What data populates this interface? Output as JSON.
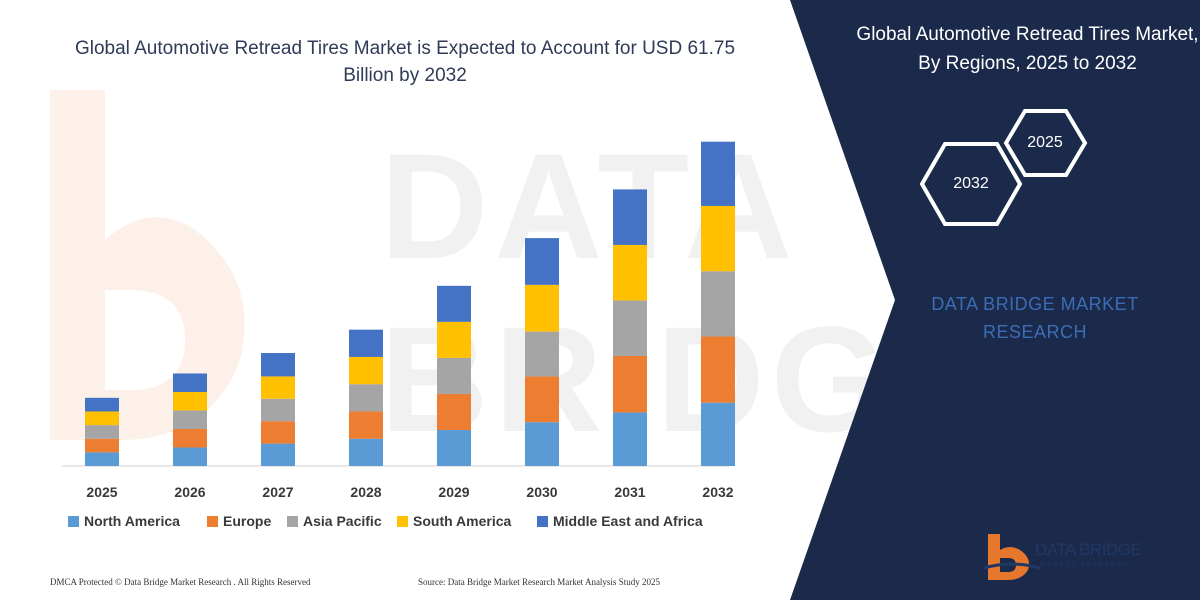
{
  "header": {
    "chart_title": "Global Automotive Retread Tires Market is Expected to Account for USD 61.75 Billion by 2032"
  },
  "panel": {
    "title": "Global Automotive Retread Tires Market, By Regions, 2025 to 2032",
    "hex_left": "2032",
    "hex_right": "2025",
    "brand_text": "DATA BRIDGE MARKET RESEARCH",
    "background_color": "#1b2a4a"
  },
  "footer": {
    "left": "DMCA Protected © Data Bridge Market Research . All Rights Reserved",
    "right": "Source: Data Bridge Market Research Market Analysis Study 2025"
  },
  "logo": {
    "name": "DATA BRIDGE",
    "subtitle": "MARKET RESEARCH"
  },
  "chart_data": {
    "type": "bar",
    "stacked": true,
    "categories": [
      "2025",
      "2026",
      "2027",
      "2028",
      "2029",
      "2030",
      "2031",
      "2032"
    ],
    "series": [
      {
        "name": "North America",
        "color": "#5b9bd5",
        "values": [
          14,
          19,
          23,
          28,
          37,
          45,
          55,
          65
        ]
      },
      {
        "name": "Europe",
        "color": "#ed7d31",
        "values": [
          14,
          19,
          23,
          28,
          37,
          47,
          58,
          68
        ]
      },
      {
        "name": "Asia Pacific",
        "color": "#a5a5a5",
        "values": [
          14,
          19,
          23,
          28,
          37,
          46,
          57,
          67
        ]
      },
      {
        "name": "South America",
        "color": "#ffc000",
        "values": [
          14,
          19,
          23,
          28,
          37,
          48,
          57,
          67
        ]
      },
      {
        "name": "Middle East and Africa",
        "color": "#4472c4",
        "values": [
          14,
          19,
          24,
          28,
          37,
          48,
          57,
          66
        ]
      }
    ],
    "legend_position": "bottom",
    "grid": false,
    "ylim": [
      0,
      345
    ]
  }
}
